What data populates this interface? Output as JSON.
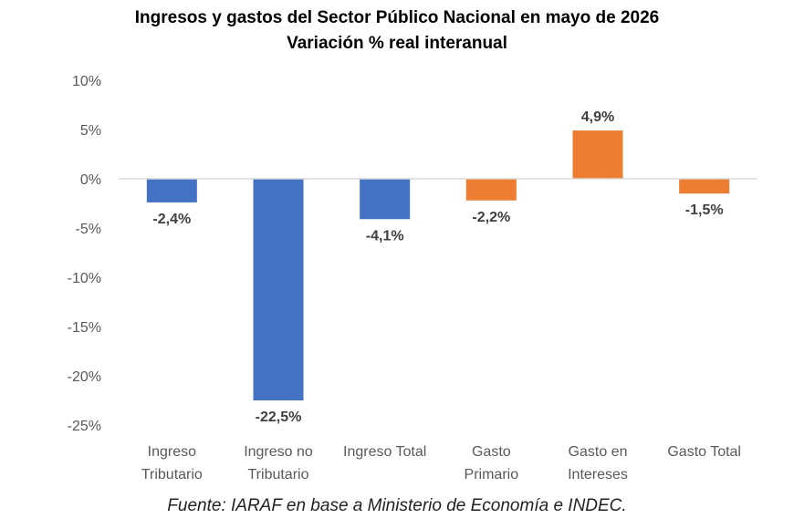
{
  "chart_data": {
    "type": "bar",
    "title": "Ingresos y gastos del Sector Público Nacional en mayo de 2026",
    "subtitle": "Variación % real interanual",
    "categories": [
      [
        "Ingreso",
        "Tributario"
      ],
      [
        "Ingreso no",
        "Tributario"
      ],
      [
        "Ingreso Total"
      ],
      [
        "Gasto",
        "Primario"
      ],
      [
        "Gasto en",
        "Intereses"
      ],
      [
        "Gasto Total"
      ]
    ],
    "values": [
      -2.4,
      -22.5,
      -4.1,
      -2.2,
      4.9,
      -1.5
    ],
    "data_labels": [
      "-2,4%",
      "-22,5%",
      "-4,1%",
      "-2,2%",
      "4,9%",
      "-1,5%"
    ],
    "bar_colors": [
      "#4472C4",
      "#4472C4",
      "#4472C4",
      "#ED7D31",
      "#ED7D31",
      "#ED7D31"
    ],
    "ylim": [
      -25,
      10
    ],
    "yticks": [
      10,
      5,
      0,
      -5,
      -10,
      -15,
      -20,
      -25
    ],
    "ytick_labels": [
      "10%",
      "5%",
      "0%",
      "-5%",
      "-10%",
      "-15%",
      "-20%",
      "-25%"
    ],
    "grid": false,
    "legend": "none",
    "xlabel": "",
    "ylabel": ""
  },
  "source": "Fuente: IARAF en base a Ministerio de Economía e INDEC."
}
